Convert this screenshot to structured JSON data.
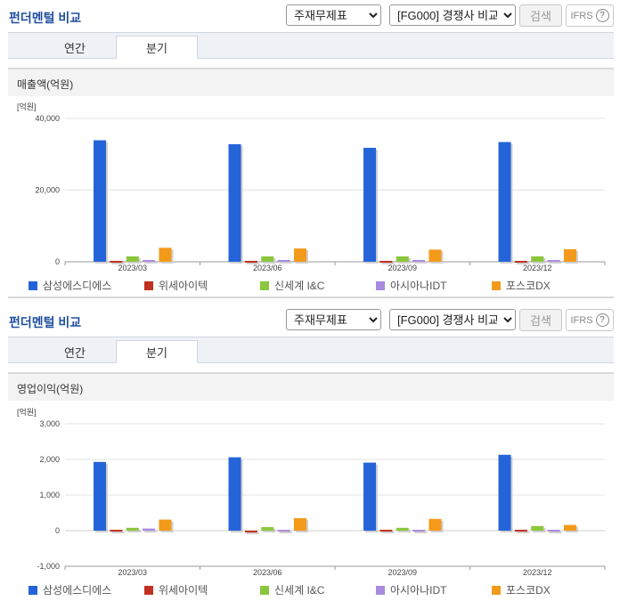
{
  "colors": {
    "series": [
      "#2563d9",
      "#c0311f",
      "#8cc63e",
      "#a98be0",
      "#f39a1a"
    ],
    "title": "#1f4f9f",
    "tab_bg": "#eef2f7"
  },
  "panels": [
    {
      "header": {
        "title": "펀더멘털 비교",
        "select1": "주재무제표",
        "select2": "[FG000] 경쟁사 비교",
        "search_label": "검색",
        "ifrs_label": "IFRS",
        "help_glyph": "?"
      },
      "tabs": [
        {
          "label": "연간",
          "active": false
        },
        {
          "label": "분기",
          "active": true
        }
      ],
      "chart_title": "매출액(억원)",
      "chart_data": {
        "type": "bar",
        "unit_label": "[억원]",
        "categories": [
          "2023/03",
          "2023/06",
          "2023/09",
          "2023/12"
        ],
        "ylim": [
          0,
          40000
        ],
        "yticks": [
          0,
          20000,
          40000
        ],
        "ytick_labels": [
          "0",
          "20,000",
          "40,000"
        ],
        "series": [
          {
            "name": "삼성에스디에스",
            "values": [
              33900,
              32800,
              31800,
              33400
            ]
          },
          {
            "name": "위세아이텍",
            "values": [
              60,
              60,
              60,
              60
            ]
          },
          {
            "name": "신세계 I&C",
            "values": [
              1500,
              1500,
              1500,
              1500
            ]
          },
          {
            "name": "아시아나IDT",
            "values": [
              500,
              500,
              500,
              500
            ]
          },
          {
            "name": "포스코DX",
            "values": [
              3900,
              3700,
              3400,
              3500
            ]
          }
        ],
        "grid": true,
        "legend": "bottom"
      }
    },
    {
      "header": {
        "title": "펀더멘털 비교",
        "select1": "주재무제표",
        "select2": "[FG000] 경쟁사 비교",
        "search_label": "검색",
        "ifrs_label": "IFRS",
        "help_glyph": "?"
      },
      "tabs": [
        {
          "label": "연간",
          "active": false
        },
        {
          "label": "분기",
          "active": true
        }
      ],
      "chart_title": "영업이익(억원)",
      "chart_data": {
        "type": "bar",
        "unit_label": "[억원]",
        "categories": [
          "2023/03",
          "2023/06",
          "2023/09",
          "2023/12"
        ],
        "ylim": [
          -1000,
          3000
        ],
        "yticks": [
          -1000,
          0,
          1000,
          2000,
          3000
        ],
        "ytick_labels": [
          "-1,000",
          "0",
          "1,000",
          "2,000",
          "3,000"
        ],
        "series": [
          {
            "name": "삼성에스디에스",
            "values": [
              1930,
              2060,
              1910,
              2130
            ]
          },
          {
            "name": "위세아이텍",
            "values": [
              -10,
              -50,
              -10,
              -10
            ]
          },
          {
            "name": "신세계 I&C",
            "values": [
              80,
              100,
              80,
              130
            ]
          },
          {
            "name": "아시아나IDT",
            "values": [
              60,
              30,
              20,
              20
            ]
          },
          {
            "name": "포스코DX",
            "values": [
              310,
              350,
              330,
              160
            ]
          }
        ],
        "grid": true,
        "legend": "bottom"
      }
    }
  ]
}
